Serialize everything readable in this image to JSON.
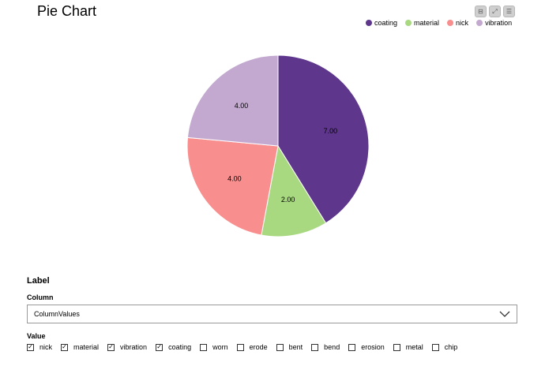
{
  "title": "Pie Chart",
  "toolbar": {
    "icons": [
      "minimize-icon",
      "expand-icon",
      "menu-icon"
    ],
    "glyphs": [
      "⊟",
      "⤢",
      "☰"
    ]
  },
  "chart_data": {
    "type": "pie",
    "categories": [
      "coating",
      "material",
      "nick",
      "vibration"
    ],
    "values": [
      7,
      2,
      4,
      4
    ],
    "labels": [
      "7.00",
      "2.00",
      "4.00",
      "4.00"
    ],
    "colors": [
      "#5e378d",
      "#a8d981",
      "#f88e8e",
      "#c3a9d0"
    ],
    "legend_position": "top-right"
  },
  "form": {
    "section_label": "Label",
    "column_label": "Column",
    "column_value": "ColumnValues",
    "value_label": "Value",
    "options": [
      {
        "label": "nick",
        "checked": true
      },
      {
        "label": "material",
        "checked": true
      },
      {
        "label": "vibration",
        "checked": true
      },
      {
        "label": "coating",
        "checked": true
      },
      {
        "label": "worn",
        "checked": false
      },
      {
        "label": "erode",
        "checked": false
      },
      {
        "label": "bent",
        "checked": false
      },
      {
        "label": "bend",
        "checked": false
      },
      {
        "label": "erosion",
        "checked": false
      },
      {
        "label": "metal",
        "checked": false
      },
      {
        "label": "chip",
        "checked": false
      }
    ]
  }
}
